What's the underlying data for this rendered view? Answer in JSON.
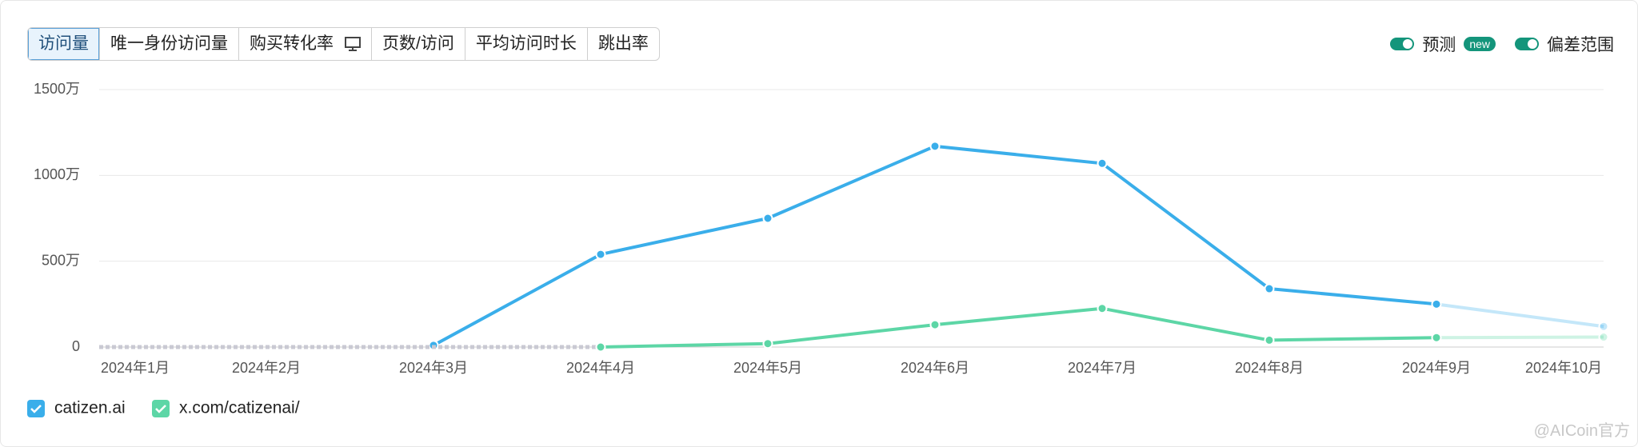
{
  "tabs": [
    "访问量",
    "唯一身份访问量",
    "购买转化率",
    "页数/访问",
    "平均访问时长",
    "跳出率"
  ],
  "toggles": [
    {
      "label": "预测",
      "badge": "new"
    },
    {
      "label": "偏差范围"
    }
  ],
  "watermark": "@AICoin官方",
  "chart_data": {
    "type": "line",
    "categories": [
      "2024年1月",
      "2024年2月",
      "2024年3月",
      "2024年4月",
      "2024年5月",
      "2024年6月",
      "2024年7月",
      "2024年8月",
      "2024年9月",
      "2024年10月"
    ],
    "series": [
      {
        "name": "catizen.ai",
        "color": "#3aaeea",
        "values": [
          null,
          null,
          10,
          540,
          750,
          1170,
          1070,
          340,
          250,
          120
        ]
      },
      {
        "name": "x.com/catizenai/",
        "color": "#5dd6a6",
        "values": [
          null,
          null,
          null,
          0,
          20,
          130,
          225,
          40,
          55,
          58
        ]
      }
    ],
    "ylim": [
      0,
      1500
    ],
    "yticks": [
      0,
      {
        "value": 500,
        "label": "500万"
      },
      {
        "value": 1000,
        "label": "1000万"
      },
      {
        "value": 1500,
        "label": "1500万"
      }
    ],
    "grid": true
  }
}
